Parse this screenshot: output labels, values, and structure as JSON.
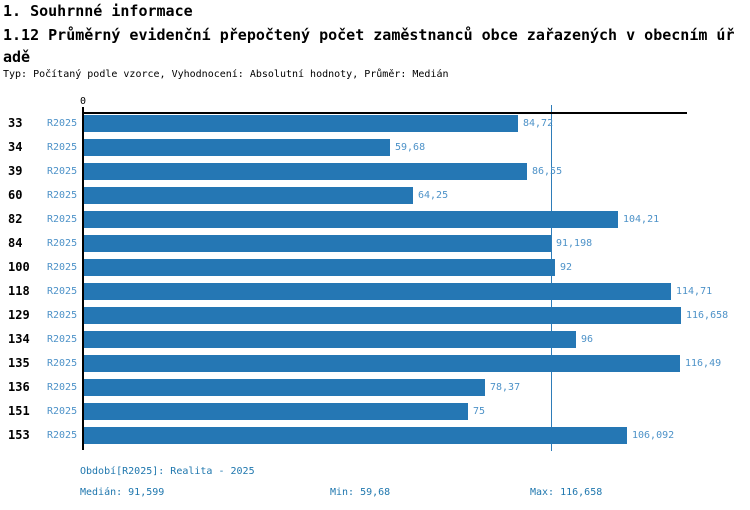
{
  "header": {
    "section_title": "1. Souhrnné informace",
    "title": "1.12 Průměrný evidenční přepočtený počet zaměstnanců obce zařazených v obecním úřadě",
    "meta": "Typ: Počítaný podle vzorce, Vyhodnocení: Absolutní hodnoty, Průměr: Medián"
  },
  "chart_data": {
    "type": "bar",
    "orientation": "horizontal",
    "title": "1.12 Průměrný evidenční přepočtený počet zaměstnanců obce zařazených v obecním úřadě",
    "axis_origin_label": "0",
    "xlim": [
      0,
      117.8
    ],
    "grid": false,
    "legend_position": "none",
    "categories": [
      "33",
      "34",
      "39",
      "60",
      "82",
      "84",
      "100",
      "118",
      "129",
      "134",
      "135",
      "136",
      "151",
      "153"
    ],
    "series": [
      {
        "name": "R2025",
        "values": [
          84.72,
          59.68,
          86.55,
          64.25,
          104.21,
          91.198,
          92,
          114.71,
          116.658,
          96,
          116.49,
          78.37,
          75,
          106.092
        ],
        "value_labels": [
          "84,72",
          "59,68",
          "86,55",
          "64,25",
          "104,21",
          "91,198",
          "92",
          "114,71",
          "116,658",
          "96",
          "116,49",
          "78,37",
          "75",
          "106,092"
        ]
      }
    ],
    "median_ref_line": 91.599,
    "colors": {
      "bar": "#2577b4",
      "value_label": "#4d92c8",
      "series_label": "#4d92c8",
      "category_label": "#000000",
      "median_line": "#2e7cb8",
      "axis": "#000000",
      "footer_text": "#1f77ae"
    }
  },
  "footer": {
    "period": "Období[R2025]: Realita - 2025",
    "median": "Medián: 91,599",
    "min": "Min: 59,68",
    "max": "Max: 116,658"
  }
}
